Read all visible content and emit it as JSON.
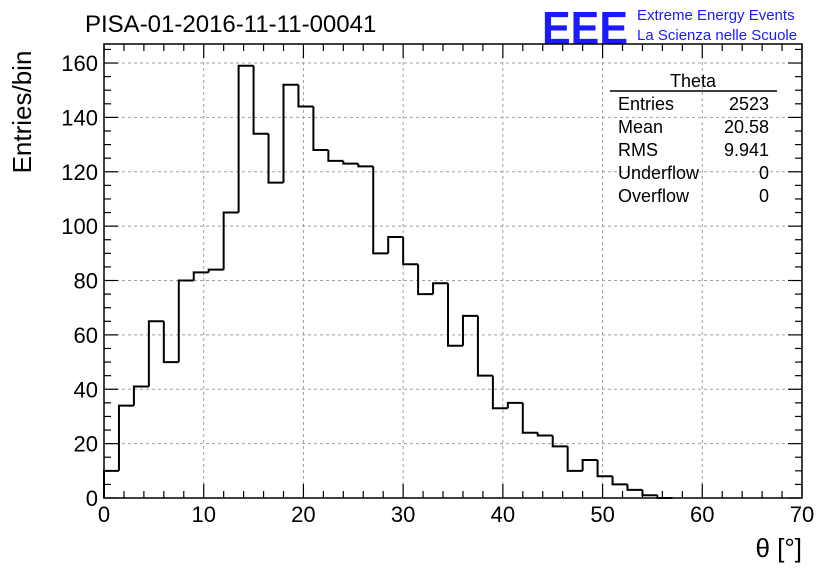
{
  "chart_data": {
    "type": "bar",
    "title": "PISA-01-2016-11-11-00041",
    "xlabel": "θ [°]",
    "ylabel": "Entries/bin",
    "xlim": [
      0,
      70
    ],
    "ylim": [
      0,
      167
    ],
    "bin_width": 1.5,
    "x_ticks": [
      "0",
      "10",
      "20",
      "30",
      "40",
      "50",
      "60",
      "70"
    ],
    "y_ticks": [
      "0",
      "20",
      "40",
      "60",
      "80",
      "100",
      "120",
      "140",
      "160"
    ],
    "grid": true,
    "bins": [
      {
        "x": 0,
        "y": 10
      },
      {
        "x": 1.5,
        "y": 34
      },
      {
        "x": 3,
        "y": 41
      },
      {
        "x": 4.5,
        "y": 65
      },
      {
        "x": 6,
        "y": 50
      },
      {
        "x": 7.5,
        "y": 80
      },
      {
        "x": 9,
        "y": 83
      },
      {
        "x": 10.5,
        "y": 84
      },
      {
        "x": 12,
        "y": 105
      },
      {
        "x": 13.5,
        "y": 159
      },
      {
        "x": 15,
        "y": 134
      },
      {
        "x": 16.5,
        "y": 116
      },
      {
        "x": 18,
        "y": 152
      },
      {
        "x": 19.5,
        "y": 144
      },
      {
        "x": 21,
        "y": 128
      },
      {
        "x": 22.5,
        "y": 124
      },
      {
        "x": 24,
        "y": 123
      },
      {
        "x": 25.5,
        "y": 122
      },
      {
        "x": 27,
        "y": 90
      },
      {
        "x": 28.5,
        "y": 96
      },
      {
        "x": 30,
        "y": 86
      },
      {
        "x": 31.5,
        "y": 75
      },
      {
        "x": 33,
        "y": 79
      },
      {
        "x": 34.5,
        "y": 56
      },
      {
        "x": 36,
        "y": 67
      },
      {
        "x": 37.5,
        "y": 45
      },
      {
        "x": 39,
        "y": 33
      },
      {
        "x": 40.5,
        "y": 35
      },
      {
        "x": 42,
        "y": 24
      },
      {
        "x": 43.5,
        "y": 23
      },
      {
        "x": 45,
        "y": 19
      },
      {
        "x": 46.5,
        "y": 10
      },
      {
        "x": 48,
        "y": 14
      },
      {
        "x": 49.5,
        "y": 8
      },
      {
        "x": 51,
        "y": 5
      },
      {
        "x": 52.5,
        "y": 3
      },
      {
        "x": 54,
        "y": 1
      },
      {
        "x": 55.5,
        "y": 0
      }
    ],
    "stats": {
      "name": "Theta",
      "rows": [
        {
          "label": "Entries",
          "value": "2523"
        },
        {
          "label": "Mean",
          "value": "20.58"
        },
        {
          "label": "RMS",
          "value": "9.941"
        },
        {
          "label": "Underflow",
          "value": "0"
        },
        {
          "label": "Overflow",
          "value": "0"
        }
      ]
    }
  },
  "logo": {
    "text": "EEE",
    "line1": "Extreme Energy Events",
    "line2": "La Scienza nelle Scuole",
    "color": "#1a1aff"
  },
  "colors": {
    "line": "#000000",
    "grid": "#a0a0a0"
  }
}
